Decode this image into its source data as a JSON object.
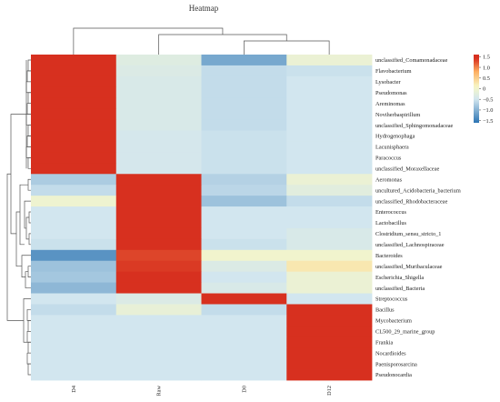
{
  "chart_data": {
    "type": "heatmap",
    "title": "Heatmap",
    "columns": [
      "D4",
      "Raw",
      "D0",
      "D12"
    ],
    "rows": [
      "unclassified_Comamonadaceae",
      "Flavobacterium",
      "Lysobacter",
      "Pseudomonas",
      "Areminomas",
      "Noviherbaspirillum",
      "unclassified_Sphingomonadaceae",
      "Hydrogenophaga",
      "Lacunisphaera",
      "Paracoccus",
      "unclassified_Moraxellaceae",
      "Aeromonas",
      "uncultured_Acidobacteria_bacterium",
      "unclassified_Rhodobacteraceae",
      "Enterococcus",
      "Lactobacillus",
      "Clostridium_sensu_stricto_1",
      "unclassified_Lachnospiraceae",
      "Bacteroides",
      "unclassified_Muribaculaceae",
      "Escherichia_Shigella",
      "unclassified_Bacteria",
      "Streptococcus",
      "Bacillus",
      "Mycobacterium",
      "CL500_29_marine_group",
      "Frankia",
      "Nocardioides",
      "Paenisporosarcina",
      "Pseudonocardia"
    ],
    "values": [
      [
        1.5,
        -0.3,
        -1.1,
        -0.1
      ],
      [
        1.5,
        -0.35,
        -0.6,
        -0.55
      ],
      [
        1.5,
        -0.4,
        -0.6,
        -0.5
      ],
      [
        1.5,
        -0.4,
        -0.6,
        -0.5
      ],
      [
        1.5,
        -0.4,
        -0.6,
        -0.5
      ],
      [
        1.5,
        -0.4,
        -0.6,
        -0.5
      ],
      [
        1.5,
        -0.4,
        -0.6,
        -0.5
      ],
      [
        1.5,
        -0.45,
        -0.55,
        -0.5
      ],
      [
        1.5,
        -0.45,
        -0.55,
        -0.5
      ],
      [
        1.5,
        -0.45,
        -0.55,
        -0.5
      ],
      [
        1.5,
        -0.45,
        -0.55,
        -0.5
      ],
      [
        -0.75,
        1.5,
        -0.7,
        -0.1
      ],
      [
        -0.6,
        1.5,
        -0.65,
        -0.25
      ],
      [
        -0.05,
        1.5,
        -0.85,
        -0.6
      ],
      [
        -0.5,
        1.5,
        -0.5,
        -0.5
      ],
      [
        -0.5,
        1.5,
        -0.5,
        -0.5
      ],
      [
        -0.5,
        1.5,
        -0.5,
        -0.4
      ],
      [
        -0.55,
        1.5,
        -0.55,
        -0.4
      ],
      [
        -1.3,
        1.3,
        0.0,
        0.0
      ],
      [
        -0.85,
        1.35,
        -0.35,
        0.25
      ],
      [
        -0.8,
        1.4,
        -0.5,
        -0.1
      ],
      [
        -0.95,
        1.45,
        -0.4,
        -0.1
      ],
      [
        -0.5,
        -0.35,
        1.5,
        -0.5
      ],
      [
        -0.6,
        -0.15,
        -0.6,
        1.5
      ],
      [
        -0.5,
        -0.5,
        -0.5,
        1.5
      ],
      [
        -0.5,
        -0.5,
        -0.5,
        1.5
      ],
      [
        -0.5,
        -0.5,
        -0.5,
        1.5
      ],
      [
        -0.5,
        -0.5,
        -0.5,
        1.5
      ],
      [
        -0.5,
        -0.5,
        -0.5,
        1.5
      ],
      [
        -0.5,
        -0.5,
        -0.5,
        1.5
      ]
    ],
    "colorbar": {
      "ticks": [
        1.5,
        1.0,
        0.5,
        0,
        -0.5,
        -1.0,
        -1.5
      ],
      "tick_labels": [
        "1.5",
        "1.0",
        "0.5",
        "0",
        "−0.5",
        "−1.0",
        "−1.5"
      ],
      "range": [
        -1.6,
        1.6
      ],
      "colors": {
        "low": "#2b74b3",
        "mid_low": "#d2e6ef",
        "mid": "#f7f7c6",
        "mid_high": "#fdae61",
        "high": "#d7301f"
      }
    },
    "column_dendrogram": "((D4,(Raw,(D0,D12))))",
    "row_dendrogram": "clusters: [rows 1-11], [rows 12-22], [rows 23-30]"
  }
}
